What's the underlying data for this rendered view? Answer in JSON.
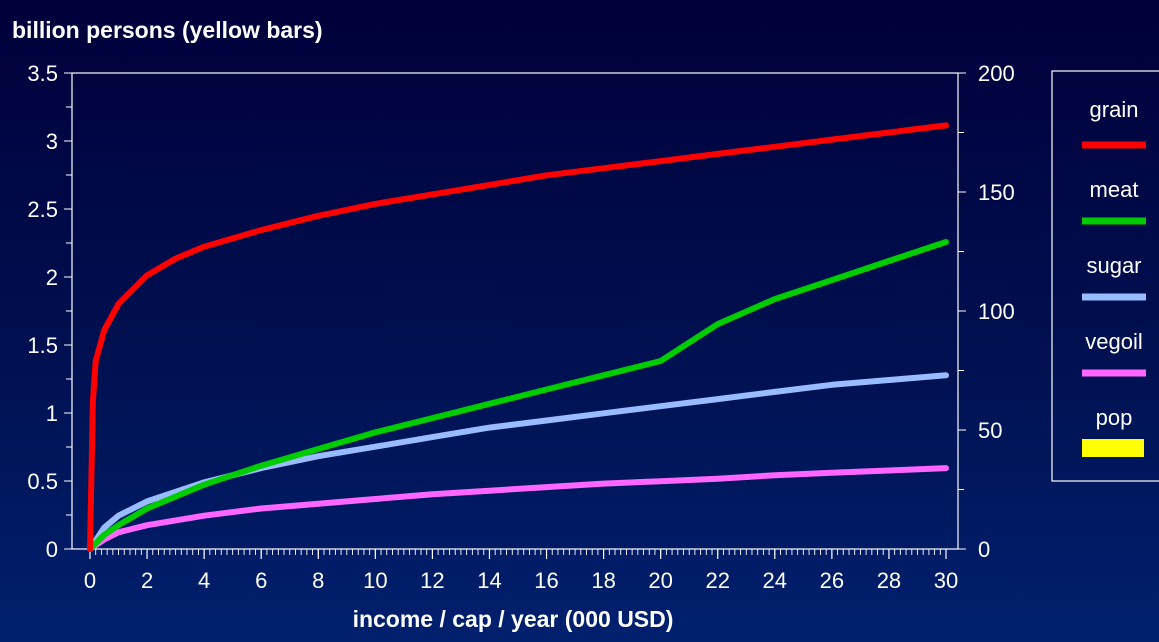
{
  "chart_data": {
    "type": "line",
    "y_axis_label": "billion persons (yellow bars)",
    "x_axis_label": "income / cap / year (000 USD)",
    "x_range": [
      0,
      30
    ],
    "y_left_range": [
      0,
      3.5
    ],
    "y_right_range": [
      0,
      200
    ],
    "x_ticks": [
      "0",
      "2",
      "4",
      "6",
      "8",
      "10",
      "12",
      "14",
      "16",
      "18",
      "20",
      "22",
      "24",
      "26",
      "28",
      "30"
    ],
    "y_left_ticks": [
      "0",
      "0.5",
      "1",
      "1.5",
      "2",
      "2.5",
      "3",
      "3.5"
    ],
    "y_right_ticks": [
      "0",
      "50",
      "100",
      "150",
      "200"
    ],
    "grid": false,
    "legend_position": "right",
    "series": [
      {
        "name": "grain",
        "color": "#ff0000",
        "x": [
          0,
          0.1,
          0.2,
          0.5,
          1,
          2,
          3,
          4,
          6,
          8,
          10,
          12,
          14,
          16,
          18,
          20,
          22,
          24,
          26,
          28,
          30
        ],
        "y": [
          0,
          62,
          79,
          92,
          103,
          115,
          122,
          127,
          134,
          140,
          145,
          149,
          153,
          157,
          160,
          163,
          166,
          169,
          172,
          175,
          178
        ]
      },
      {
        "name": "meat",
        "color": "#00cc00",
        "x": [
          0,
          0.5,
          1,
          2,
          4,
          6,
          8,
          10,
          12,
          14,
          16,
          18,
          20,
          22,
          24,
          26,
          28,
          30
        ],
        "y": [
          0,
          6,
          10,
          17,
          27,
          35,
          42,
          49,
          55,
          61,
          67,
          73,
          79,
          94.5,
          105,
          113,
          121,
          129
        ]
      },
      {
        "name": "sugar",
        "color": "#99bbff",
        "x": [
          0,
          0.5,
          1,
          2,
          4,
          6,
          8,
          10,
          12,
          14,
          16,
          18,
          20,
          22,
          24,
          26,
          28,
          30
        ],
        "y": [
          0,
          9,
          14,
          20,
          28,
          34,
          39,
          43,
          47,
          51,
          54,
          57,
          60,
          63,
          66,
          69,
          71,
          73
        ]
      },
      {
        "name": "vegoil",
        "color": "#ff66ff",
        "x": [
          0,
          0.5,
          1,
          2,
          4,
          6,
          8,
          10,
          12,
          14,
          16,
          18,
          20,
          22,
          24,
          26,
          28,
          30
        ],
        "y": [
          0,
          4,
          7,
          10,
          14,
          17,
          19,
          21,
          23,
          24.5,
          26,
          27.5,
          28.5,
          29.5,
          31,
          32,
          33,
          34
        ]
      },
      {
        "name": "pop",
        "color": "#ffff00",
        "x": [],
        "y": []
      }
    ]
  }
}
